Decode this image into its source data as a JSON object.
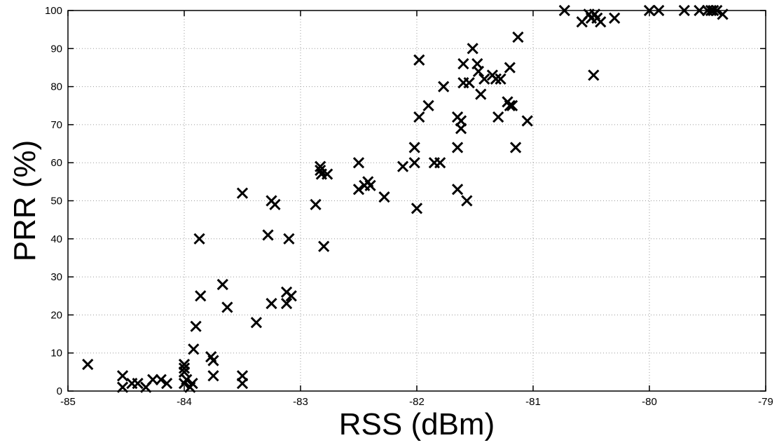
{
  "chart_data": {
    "type": "scatter",
    "title": "",
    "xlabel": "RSS (dBm)",
    "ylabel": "PRR (%)",
    "xlim": [
      -85,
      -79
    ],
    "ylim": [
      0,
      100
    ],
    "xticks": [
      -85,
      -84,
      -83,
      -82,
      -81,
      -80,
      -79
    ],
    "xtick_labels": [
      "-85",
      "-84",
      "-83",
      "-82",
      "-81",
      "-80",
      "-79"
    ],
    "yticks": [
      0,
      10,
      20,
      30,
      40,
      50,
      60,
      70,
      80,
      90,
      100
    ],
    "ytick_labels": [
      "0",
      "10",
      "20",
      "30",
      "40",
      "50",
      "60",
      "70",
      "80",
      "90",
      "100"
    ],
    "grid": true,
    "marker": "x",
    "marker_color": "#000000",
    "series": [
      {
        "points": [
          [
            -84.83,
            7
          ],
          [
            -84.53,
            4
          ],
          [
            -84.53,
            1
          ],
          [
            -84.45,
            2
          ],
          [
            -84.4,
            2
          ],
          [
            -84.33,
            1
          ],
          [
            -84.27,
            3
          ],
          [
            -84.2,
            3
          ],
          [
            -84.15,
            2
          ],
          [
            -84.0,
            7
          ],
          [
            -84.0,
            6
          ],
          [
            -84.0,
            5
          ],
          [
            -84.0,
            2
          ],
          [
            -83.98,
            3
          ],
          [
            -83.95,
            1
          ],
          [
            -83.93,
            2
          ],
          [
            -83.92,
            11
          ],
          [
            -83.9,
            17
          ],
          [
            -83.87,
            40
          ],
          [
            -83.86,
            25
          ],
          [
            -83.77,
            9
          ],
          [
            -83.75,
            8
          ],
          [
            -83.75,
            4
          ],
          [
            -83.67,
            28
          ],
          [
            -83.63,
            22
          ],
          [
            -83.5,
            52
          ],
          [
            -83.5,
            4
          ],
          [
            -83.5,
            2
          ],
          [
            -83.38,
            18
          ],
          [
            -83.28,
            41
          ],
          [
            -83.25,
            23
          ],
          [
            -83.25,
            50
          ],
          [
            -83.22,
            49
          ],
          [
            -83.12,
            26
          ],
          [
            -83.12,
            23
          ],
          [
            -83.1,
            40
          ],
          [
            -83.08,
            25
          ],
          [
            -82.87,
            49
          ],
          [
            -82.83,
            59
          ],
          [
            -82.83,
            58
          ],
          [
            -82.82,
            57
          ],
          [
            -82.8,
            38
          ],
          [
            -82.77,
            57
          ],
          [
            -82.5,
            60
          ],
          [
            -82.5,
            53
          ],
          [
            -82.45,
            54
          ],
          [
            -82.42,
            55
          ],
          [
            -82.4,
            54
          ],
          [
            -82.28,
            51
          ],
          [
            -82.12,
            59
          ],
          [
            -82.02,
            60
          ],
          [
            -82.02,
            64
          ],
          [
            -82.0,
            48
          ],
          [
            -81.98,
            72
          ],
          [
            -81.98,
            87
          ],
          [
            -81.9,
            75
          ],
          [
            -81.85,
            60
          ],
          [
            -81.8,
            60
          ],
          [
            -81.77,
            80
          ],
          [
            -81.65,
            64
          ],
          [
            -81.65,
            72
          ],
          [
            -81.65,
            53
          ],
          [
            -81.62,
            71
          ],
          [
            -81.62,
            69
          ],
          [
            -81.6,
            86
          ],
          [
            -81.6,
            81
          ],
          [
            -81.57,
            50
          ],
          [
            -81.55,
            81
          ],
          [
            -81.52,
            90
          ],
          [
            -81.48,
            86
          ],
          [
            -81.47,
            84
          ],
          [
            -81.45,
            78
          ],
          [
            -81.42,
            82
          ],
          [
            -81.35,
            83
          ],
          [
            -81.32,
            82
          ],
          [
            -81.3,
            72
          ],
          [
            -81.28,
            82
          ],
          [
            -81.22,
            76
          ],
          [
            -81.2,
            75
          ],
          [
            -81.2,
            85
          ],
          [
            -81.18,
            75
          ],
          [
            -81.15,
            64
          ],
          [
            -81.13,
            93
          ],
          [
            -81.05,
            71
          ],
          [
            -80.73,
            100
          ],
          [
            -80.58,
            97
          ],
          [
            -80.52,
            99
          ],
          [
            -80.5,
            98
          ],
          [
            -80.48,
            83
          ],
          [
            -80.47,
            99
          ],
          [
            -80.45,
            98
          ],
          [
            -80.42,
            97
          ],
          [
            -80.3,
            98
          ],
          [
            -80.0,
            100
          ],
          [
            -79.92,
            100
          ],
          [
            -79.7,
            100
          ],
          [
            -79.57,
            100
          ],
          [
            -79.5,
            100
          ],
          [
            -79.47,
            100
          ],
          [
            -79.45,
            100
          ],
          [
            -79.42,
            100
          ],
          [
            -79.37,
            99
          ]
        ]
      }
    ]
  }
}
